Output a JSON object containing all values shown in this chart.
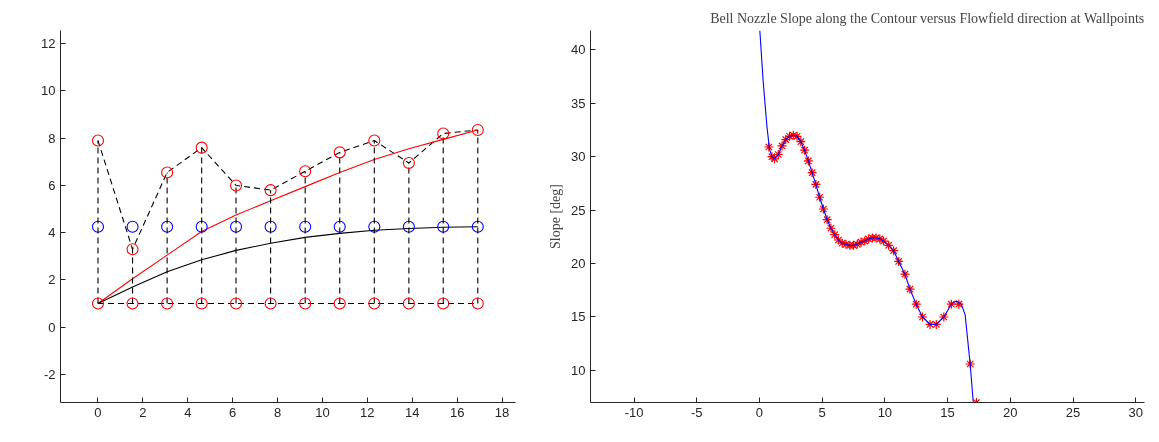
{
  "chart_data": [
    {
      "type": "line",
      "xlim": [
        -1.67,
        18.6
      ],
      "ylim": [
        -3.19,
        12.56
      ],
      "xticks": [
        0,
        2,
        4,
        6,
        8,
        10,
        12,
        14,
        16,
        18
      ],
      "yticks": [
        -2,
        0,
        2,
        4,
        6,
        8,
        10,
        12
      ],
      "grid": false,
      "x": [
        0,
        1.54,
        3.08,
        4.62,
        6.15,
        7.69,
        9.23,
        10.77,
        12.31,
        13.85,
        15.38,
        16.92
      ],
      "series": [
        {
          "color": "#000000",
          "line_style": "dashed",
          "marker": "none",
          "values": [
            7.9,
            3.3,
            6.55,
            7.6,
            6.0,
            5.8,
            6.6,
            7.4,
            7.9,
            6.95,
            8.2,
            8.35
          ]
        },
        {
          "color": "#000000",
          "line_style": "dashed",
          "marker": "none",
          "values": [
            1,
            1,
            1,
            1,
            1,
            1,
            1,
            1,
            1,
            1,
            1,
            1
          ]
        },
        {
          "color": "#ff0000",
          "line_style": "solid",
          "marker": "none",
          "values": [
            1,
            2.05,
            3.05,
            4.05,
            4.75,
            5.35,
            5.95,
            6.55,
            7.1,
            7.55,
            7.95,
            8.35
          ]
        },
        {
          "color": "#000000",
          "line_style": "solid",
          "marker": "none",
          "values": [
            1,
            1.7,
            2.35,
            2.85,
            3.25,
            3.55,
            3.8,
            3.97,
            4.1,
            4.18,
            4.23,
            4.25
          ]
        },
        {
          "type": "scatter",
          "color": "#0000ff",
          "marker": "circle",
          "values": [
            4.25,
            4.25,
            4.25,
            4.25,
            4.25,
            4.25,
            4.25,
            4.25,
            4.25,
            4.25,
            4.25,
            4.25
          ]
        },
        {
          "type": "scatter",
          "color": "#ff0000",
          "marker": "circle",
          "values": [
            7.9,
            3.3,
            6.55,
            7.6,
            6.0,
            5.8,
            6.6,
            7.4,
            7.9,
            6.95,
            8.2,
            8.35
          ],
          "errors": [
            [
              1,
              7.9
            ],
            [
              1,
              3.3
            ],
            [
              1,
              6.55
            ],
            [
              1,
              7.6
            ],
            [
              1,
              6.0
            ],
            [
              1,
              5.8
            ],
            [
              1,
              6.6
            ],
            [
              1,
              7.4
            ],
            [
              1,
              7.9
            ],
            [
              1,
              6.95
            ],
            [
              1,
              8.2
            ],
            [
              1,
              8.35
            ]
          ]
        },
        {
          "type": "scatter",
          "color": "#ff0000",
          "marker": "circle",
          "values": [
            1,
            1,
            1,
            1,
            1,
            1,
            1,
            1,
            1,
            1,
            1,
            1
          ]
        }
      ]
    },
    {
      "type": "line",
      "title": "Bell Nozzle Slope along the Contour versus Flowfield direction at Wallpoints",
      "ylabel": "Slope [deg]",
      "xlim": [
        -13.47,
        30.7
      ],
      "ylim": [
        7.0,
        41.8
      ],
      "xticks": [
        -10,
        -5,
        0,
        5,
        10,
        15,
        20,
        25,
        30
      ],
      "yticks": [
        10,
        15,
        20,
        25,
        30,
        35,
        40
      ],
      "grid": false,
      "series": [
        {
          "type": "scatter",
          "color": "#ff0000",
          "marker": "cross",
          "x": [
            0.75,
            1.0,
            1.2,
            1.5,
            1.8,
            2.1,
            2.4,
            2.7,
            3.0,
            3.3,
            3.6,
            3.9,
            4.2,
            4.5,
            4.8,
            5.1,
            5.4,
            5.7,
            6.0,
            6.3,
            6.6,
            6.9,
            7.2,
            7.5,
            7.8,
            8.1,
            8.4,
            8.7,
            9.0,
            9.3,
            9.6,
            9.9,
            10.3,
            10.7,
            11.1,
            11.6,
            12.0,
            12.5,
            13.0,
            13.6,
            14.1,
            14.7,
            15.3,
            15.9,
            16.8,
            17.3
          ],
          "values": [
            30.9,
            30.0,
            29.8,
            30.2,
            31.0,
            31.6,
            31.9,
            32.0,
            31.9,
            31.4,
            30.6,
            29.6,
            28.5,
            27.4,
            26.2,
            25.1,
            24.1,
            23.3,
            22.7,
            22.2,
            21.9,
            21.8,
            21.7,
            21.7,
            21.8,
            22.0,
            22.1,
            22.3,
            22.4,
            22.4,
            22.3,
            22.1,
            21.7,
            21.2,
            20.2,
            19.0,
            17.6,
            16.2,
            15.0,
            14.3,
            14.3,
            15.0,
            16.2,
            16.2,
            10.6,
            7.0
          ]
        },
        {
          "color": "#0000ff",
          "line_style": "solid",
          "marker": "none",
          "x": [
            0.03,
            0.3,
            0.6,
            0.8,
            1.0,
            1.2,
            1.5,
            1.8,
            2.1,
            2.4,
            2.7,
            3.0,
            3.3,
            3.6,
            3.9,
            4.2,
            4.5,
            4.8,
            5.1,
            5.4,
            5.7,
            6.0,
            6.3,
            6.6,
            6.9,
            7.2,
            7.5,
            7.8,
            8.1,
            8.4,
            8.7,
            9.0,
            9.3,
            9.6,
            9.9,
            10.3,
            10.7,
            11.1,
            11.6,
            12.0,
            12.5,
            13.0,
            13.6,
            14.1,
            14.7,
            15.3,
            15.7,
            16.1,
            16.4,
            16.8,
            17.05
          ],
          "values": [
            41.8,
            37.0,
            32.8,
            30.7,
            30.0,
            29.8,
            30.2,
            31.0,
            31.6,
            31.9,
            32.0,
            31.9,
            31.4,
            30.6,
            29.6,
            28.5,
            27.4,
            26.2,
            25.1,
            24.1,
            23.3,
            22.7,
            22.2,
            21.9,
            21.8,
            21.7,
            21.7,
            21.8,
            22.0,
            22.1,
            22.3,
            22.4,
            22.4,
            22.3,
            22.1,
            21.7,
            21.2,
            20.2,
            19.0,
            17.6,
            16.2,
            15.0,
            14.3,
            14.3,
            15.0,
            16.2,
            16.5,
            16.2,
            15.2,
            10.6,
            7.0
          ]
        }
      ]
    }
  ]
}
